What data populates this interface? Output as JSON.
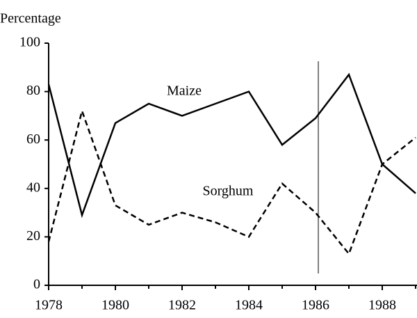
{
  "chart_data": {
    "type": "line",
    "y_axis_label": "Percentage",
    "x": [
      1978,
      1979,
      1980,
      1981,
      1982,
      1983,
      1984,
      1985,
      1986,
      1987,
      1988,
      1989
    ],
    "series": [
      {
        "name": "Maize",
        "color": "#000000",
        "dash": "solid",
        "values": [
          83,
          29,
          67,
          75,
          70,
          75,
          80,
          58,
          69,
          87,
          50,
          38
        ]
      },
      {
        "name": "Sorghum",
        "color": "#000000",
        "dash": "dashed",
        "values": [
          18,
          72,
          33,
          25,
          30,
          26,
          20,
          42,
          30,
          13,
          50,
          61
        ]
      }
    ],
    "xlim": [
      1978,
      1989
    ],
    "xticks": [
      1978,
      1980,
      1982,
      1984,
      1986,
      1988
    ],
    "ylim": [
      0,
      100
    ],
    "yticks": [
      0,
      20,
      40,
      60,
      80,
      100
    ],
    "grid": false
  }
}
